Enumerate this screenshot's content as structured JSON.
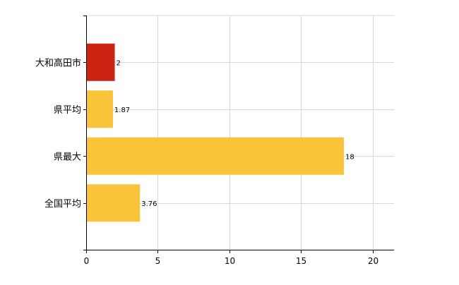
{
  "chart_data": {
    "type": "bar",
    "orientation": "horizontal",
    "categories": [
      "大和高田市",
      "県平均",
      "県最大",
      "全国平均"
    ],
    "values": [
      2,
      1.87,
      18,
      3.76
    ],
    "data_labels": [
      "2",
      "1.87",
      "18",
      "3.76"
    ],
    "colors": [
      "#cc2211",
      "#f9c43a",
      "#f9c43a",
      "#f9c43a"
    ],
    "xlim": [
      0,
      21.5
    ],
    "xticks": [
      0,
      5,
      10,
      15,
      20
    ],
    "xtick_labels": [
      "0",
      "5",
      "10",
      "15",
      "20"
    ],
    "grid": true,
    "title": "",
    "xlabel": "",
    "ylabel": ""
  }
}
